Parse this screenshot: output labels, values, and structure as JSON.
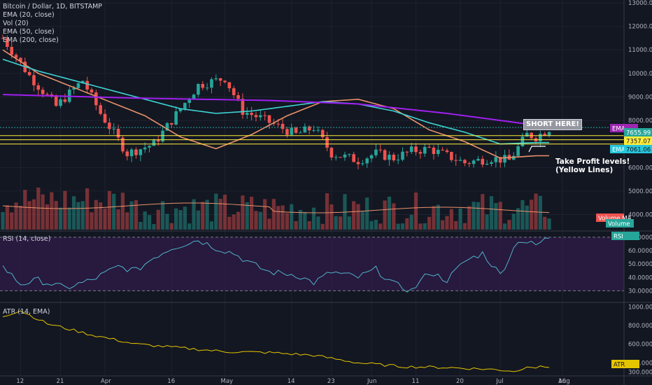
{
  "legend": {
    "title": "Bitcoin / Dollar, 1D, BITSTAMP",
    "lines": [
      "EMA (20, close)",
      "Vol (20)",
      "EMA (50, close)",
      "EMA (200, close)"
    ]
  },
  "annotations": {
    "short": "SHORT HERE!",
    "tp_line1": "Take Profit levels!",
    "tp_line2": "(Yellow Lines)"
  },
  "panes": {
    "rsi_label": "RSI (14, close)",
    "atr_label": "ATR (14, EMA)"
  },
  "axis": {
    "price_ticks": [
      "13000.00",
      "12000.00",
      "11000.00",
      "10000.00",
      "9000.00",
      "8000.00",
      "7000.00",
      "6000.00",
      "5000.00",
      "4000.00"
    ],
    "rsi_ticks": [
      "70.0000",
      "60.0000",
      "50.0000",
      "40.0000",
      "30.0000"
    ],
    "atr_ticks": [
      "1000.0000",
      "800.0000",
      "600.0000",
      "400.0000",
      "300.0000"
    ],
    "time_ticks": [
      "12",
      "21",
      "Apr",
      "16",
      "May",
      "14",
      "23",
      "Jun",
      "11",
      "20",
      "Jul",
      "16",
      "Aug"
    ]
  },
  "tags": {
    "ema_200": "EMA",
    "price_last": "7655.99",
    "level_1": "7357.07",
    "ema_50_label": "EMA",
    "ema_50_value": "7061.06",
    "volume_ma": "Volume MA",
    "volume": "Volume",
    "rsi": "RSI",
    "atr": "ATR"
  },
  "chart_data": {
    "type": "candlestick",
    "symbol": "Bitcoin / Dollar",
    "interval": "1D",
    "exchange": "BITSTAMP",
    "price_range": [
      3600,
      13000
    ],
    "take_profit_levels": [
      7357.07,
      7180,
      7000
    ],
    "dashed_level": 7700,
    "series": [
      {
        "name": "EMA (20, close)",
        "color": "#e8926b",
        "x": [
          0,
          8,
          16,
          24,
          32,
          40,
          48,
          56,
          64,
          72,
          80,
          88,
          96,
          104,
          112,
          120
        ],
        "values": [
          11000,
          10000,
          9400,
          8800,
          8200,
          7300,
          6800,
          7400,
          8200,
          8800,
          8900,
          8500,
          7600,
          7100,
          6400,
          6500
        ]
      },
      {
        "name": "EMA (50, close)",
        "color": "#3ed4d4",
        "x": [
          0,
          8,
          16,
          24,
          32,
          40,
          48,
          56,
          64,
          72,
          80,
          88,
          96,
          104,
          112,
          120
        ],
        "values": [
          10600,
          10100,
          9700,
          9300,
          8900,
          8500,
          8300,
          8400,
          8600,
          8800,
          8700,
          8400,
          7900,
          7500,
          7000,
          7061
        ]
      },
      {
        "name": "EMA (200, close)",
        "color": "#a020f0",
        "x": [
          0,
          30,
          60,
          80,
          100,
          120
        ],
        "values": [
          9100,
          8950,
          8850,
          8700,
          8300,
          7800
        ]
      }
    ],
    "rsi_range": [
      25,
      72
    ],
    "rsi_bands": [
      70,
      30
    ],
    "atr_range": [
      290,
      1010
    ],
    "volume_ma_color": "#e8926b",
    "up_color": "#26a69a",
    "down_color": "#ef5350",
    "level_color": "#ffeb3b"
  }
}
